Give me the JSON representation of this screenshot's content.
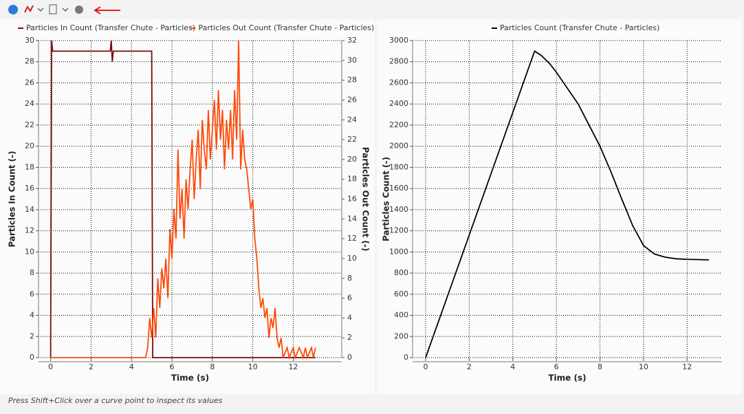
{
  "footer": "Press Shift+Click over a curve point to inspect its values",
  "chart_data": [
    {
      "type": "line",
      "xlabel": "Time (s)",
      "ylabel": "Particles In Count  (-)",
      "y2label": "Particles Out Count  (-)",
      "xlim": [
        -0.6,
        14.4
      ],
      "xticks": [
        0,
        2,
        4,
        6,
        8,
        10,
        12
      ],
      "ylim": [
        0,
        30
      ],
      "yticks": [
        0,
        2,
        4,
        6,
        8,
        10,
        12,
        14,
        16,
        18,
        20,
        22,
        24,
        26,
        28,
        30
      ],
      "y2lim": [
        0,
        32
      ],
      "y2ticks": [
        0,
        2,
        4,
        6,
        8,
        10,
        12,
        14,
        16,
        18,
        20,
        22,
        24,
        26,
        28,
        30,
        32
      ],
      "grid": true,
      "legend": "top",
      "series": [
        {
          "name": "Particles In Count (Transfer Chute - Particles)",
          "color": "#7a0a0a",
          "x": [
            0,
            0.05,
            0.1,
            2.95,
            3.0,
            3.05,
            3.1,
            5.0,
            5.05,
            13.1
          ],
          "values": [
            0,
            30,
            29,
            29,
            30,
            28,
            29,
            29,
            0,
            0
          ]
        },
        {
          "name": "Particles Out Count (Transfer Chute - Particles)",
          "color": "#ff4a0a",
          "axis": "y2",
          "x": [
            0,
            4.7,
            4.8,
            4.9,
            5.0,
            5.1,
            5.2,
            5.3,
            5.4,
            5.5,
            5.6,
            5.7,
            5.8,
            5.9,
            6.0,
            6.1,
            6.2,
            6.3,
            6.4,
            6.5,
            6.6,
            6.7,
            6.8,
            6.9,
            7.0,
            7.1,
            7.2,
            7.3,
            7.4,
            7.5,
            7.6,
            7.7,
            7.8,
            7.9,
            8.0,
            8.1,
            8.2,
            8.3,
            8.4,
            8.5,
            8.6,
            8.7,
            8.8,
            8.9,
            9.0,
            9.1,
            9.2,
            9.3,
            9.4,
            9.5,
            9.6,
            9.7,
            9.8,
            9.9,
            10.0,
            10.1,
            10.2,
            10.3,
            10.4,
            10.5,
            10.6,
            10.7,
            10.8,
            10.9,
            11.0,
            11.1,
            11.2,
            11.3,
            11.4,
            11.5,
            11.7,
            11.8,
            12.0,
            12.1,
            12.3,
            12.5,
            12.6,
            12.7,
            12.9,
            13.0,
            13.1
          ],
          "values": [
            0,
            0,
            1,
            4,
            2,
            5,
            2,
            8,
            5,
            9,
            7,
            10,
            6,
            13,
            10,
            15,
            12,
            21,
            14,
            17,
            12,
            18,
            15,
            19,
            22,
            16,
            20,
            23,
            17,
            24,
            21,
            19,
            25,
            20,
            23,
            26,
            21,
            27,
            22,
            25,
            19,
            24,
            21,
            25,
            20,
            27,
            22,
            32,
            19,
            23,
            20,
            19,
            17,
            15,
            16,
            12,
            10,
            7,
            5,
            6,
            4,
            5,
            2,
            4,
            3,
            5,
            2,
            1,
            2,
            0,
            1,
            0,
            1,
            0,
            1,
            0,
            1,
            0,
            1,
            0,
            1
          ]
        }
      ]
    },
    {
      "type": "line",
      "xlabel": "Time (s)",
      "ylabel": "Particles Count  (-)",
      "xlim": [
        -0.6,
        13.6
      ],
      "xticks": [
        0,
        2,
        4,
        6,
        8,
        10,
        12
      ],
      "ylim": [
        0,
        3000
      ],
      "yticks": [
        0,
        200,
        400,
        600,
        800,
        1000,
        1200,
        1400,
        1600,
        1800,
        2000,
        2200,
        2400,
        2600,
        2800,
        3000
      ],
      "grid": true,
      "legend": "top",
      "series": [
        {
          "name": "Particles Count (Transfer Chute - Particles)",
          "color": "#000000",
          "x": [
            0,
            1,
            2,
            3,
            4,
            5,
            5.3,
            5.7,
            6,
            6.5,
            7,
            7.5,
            8,
            8.5,
            9,
            9.5,
            10,
            10.5,
            11,
            11.5,
            12,
            13
          ],
          "values": [
            0,
            580,
            1160,
            1740,
            2320,
            2900,
            2860,
            2780,
            2700,
            2550,
            2400,
            2200,
            2000,
            1760,
            1500,
            1250,
            1060,
            980,
            950,
            935,
            930,
            925
          ]
        }
      ]
    }
  ]
}
